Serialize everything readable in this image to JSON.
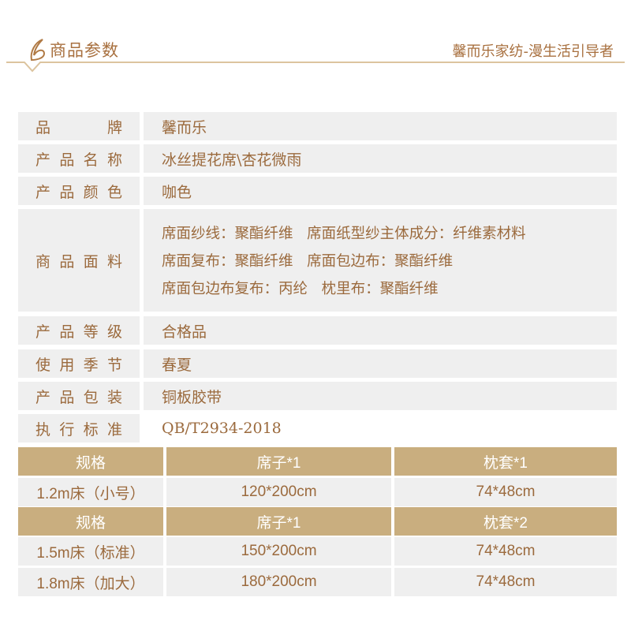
{
  "header": {
    "title": "商品参数",
    "slogan": "馨而乐家纺-漫生活引导者",
    "accent": "#c9ae7f",
    "text_color": "#9b6a3d"
  },
  "params": [
    {
      "label": [
        "品",
        "牌"
      ],
      "value": "馨而乐"
    },
    {
      "label": [
        "产",
        "品",
        "名",
        "称"
      ],
      "value": "冰丝提花席\\杏花微雨"
    },
    {
      "label": [
        "产",
        "品",
        "颜",
        "色"
      ],
      "value": "咖色"
    },
    {
      "label": [
        "商",
        "品",
        "面",
        "料"
      ],
      "lines": [
        "席面纱线：聚酯纤维   席面纸型纱主体成分：纤维素材料",
        "席面复布：聚酯纤维   席面包边布：聚酯纤维",
        "席面包边布复布：丙纶   枕里布：聚酯纤维"
      ]
    },
    {
      "label": [
        "产",
        "品",
        "等",
        "级"
      ],
      "value": "合格品"
    },
    {
      "label": [
        "使",
        "用",
        "季",
        "节"
      ],
      "value": "春夏"
    },
    {
      "label": [
        "产",
        "品",
        "包",
        "装"
      ],
      "value": "铜板胶带"
    },
    {
      "label": [
        "执",
        "行",
        "标",
        "准"
      ],
      "value": "QB/T2934-2018"
    }
  ],
  "spec_rows": [
    {
      "type": "head",
      "cells": [
        "规格",
        "席子*1",
        "枕套*1"
      ]
    },
    {
      "type": "body",
      "cells": [
        "1.2m床（小号）",
        "120*200cm",
        "74*48cm"
      ]
    },
    {
      "type": "head",
      "cells": [
        "规格",
        "席子*1",
        "枕套*2"
      ]
    },
    {
      "type": "body",
      "cells": [
        "1.5m床（标准）",
        "150*200cm",
        "74*48cm"
      ]
    },
    {
      "type": "body",
      "cells": [
        "1.8m床（加大）",
        "180*200cm",
        "74*48cm"
      ]
    }
  ]
}
